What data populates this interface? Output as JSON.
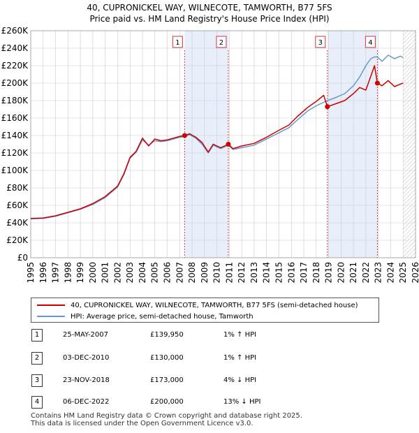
{
  "title_line1": "40, CUPRONICKEL WAY, WILNECOTE, TAMWORTH, B77 5FS",
  "title_line2": "Price paid vs. HM Land Registry's House Price Index (HPI)",
  "legend": {
    "property": "40, CUPRONICKEL WAY, WILNECOTE, TAMWORTH, B77 5FS (semi-detached house)",
    "hpi": "HPI: Average price, semi-detached house, Tamworth"
  },
  "colors": {
    "property_line": "#cc0000",
    "hpi_line": "#6699cc",
    "shade": "#e8eefa",
    "marker_line": "#dd3333",
    "grid": "#cccccc"
  },
  "sales": [
    {
      "num": "1",
      "date": "25-MAY-2007",
      "price": "£139,950",
      "hpi_rel": "1% ↑ HPI"
    },
    {
      "num": "2",
      "date": "03-DEC-2010",
      "price": "£130,000",
      "hpi_rel": "1% ↑ HPI"
    },
    {
      "num": "3",
      "date": "23-NOV-2018",
      "price": "£173,000",
      "hpi_rel": "4% ↓ HPI"
    },
    {
      "num": "4",
      "date": "06-DEC-2022",
      "price": "£200,000",
      "hpi_rel": "13% ↓ HPI"
    }
  ],
  "footer_line1": "Contains HM Land Registry data © Crown copyright and database right 2025.",
  "footer_line2": "This data is licensed under the Open Government Licence v3.0.",
  "chart_data": {
    "type": "line",
    "title": "Price paid vs. HM Land Registry's House Price Index (HPI)",
    "xlim": [
      1995,
      2026
    ],
    "ylim": [
      0,
      260000
    ],
    "x_ticks": [
      1995,
      1996,
      1997,
      1998,
      1999,
      2000,
      2001,
      2002,
      2003,
      2004,
      2005,
      2006,
      2007,
      2008,
      2009,
      2010,
      2011,
      2012,
      2013,
      2014,
      2015,
      2016,
      2017,
      2018,
      2019,
      2020,
      2021,
      2022,
      2023,
      2024,
      2025,
      2026
    ],
    "y_ticks": [
      0,
      20000,
      40000,
      60000,
      80000,
      100000,
      120000,
      140000,
      160000,
      180000,
      200000,
      220000,
      240000,
      260000
    ],
    "y_tick_labels": [
      "£0",
      "£20K",
      "£40K",
      "£60K",
      "£80K",
      "£100K",
      "£120K",
      "£140K",
      "£160K",
      "£180K",
      "£200K",
      "£220K",
      "£240K",
      "£260K"
    ],
    "shaded_ranges": [
      [
        2007.4,
        2010.92
      ],
      [
        2018.9,
        2022.93
      ]
    ],
    "future_hatch_from": 2025.0,
    "markers": [
      {
        "label": "1",
        "x": 2007.4,
        "y": 139950
      },
      {
        "label": "2",
        "x": 2010.92,
        "y": 130000
      },
      {
        "label": "3",
        "x": 2018.9,
        "y": 173000
      },
      {
        "label": "4",
        "x": 2022.93,
        "y": 200000
      }
    ],
    "series": [
      {
        "name": "40, CUPRONICKEL WAY, WILNECOTE, TAMWORTH, B77 5FS (semi-detached house)",
        "x": [
          1995.0,
          1996.0,
          1997.0,
          1998.0,
          1999.0,
          2000.0,
          2001.0,
          2002.0,
          2002.5,
          2003.0,
          2003.5,
          2004.0,
          2004.5,
          2005.0,
          2005.5,
          2006.0,
          2006.5,
          2007.0,
          2007.4,
          2007.8,
          2008.3,
          2008.8,
          2009.3,
          2009.7,
          2010.3,
          2010.92,
          2011.3,
          2012.0,
          2013.0,
          2014.0,
          2015.0,
          2015.8,
          2016.5,
          2017.3,
          2018.0,
          2018.6,
          2018.9,
          2019.5,
          2020.3,
          2021.0,
          2021.5,
          2022.0,
          2022.4,
          2022.7,
          2022.93,
          2023.3,
          2023.8,
          2024.3,
          2024.8,
          2025.0
        ],
        "y": [
          45000,
          45500,
          48000,
          52000,
          56000,
          62000,
          70000,
          82000,
          96000,
          115000,
          122000,
          137000,
          128000,
          136000,
          134000,
          135000,
          137000,
          139000,
          139950,
          142000,
          138000,
          132000,
          121000,
          130000,
          126000,
          130000,
          125000,
          128000,
          131000,
          138000,
          146000,
          152000,
          162000,
          172000,
          179000,
          186000,
          173000,
          176000,
          180000,
          188000,
          195000,
          192000,
          208000,
          220000,
          200000,
          197000,
          203000,
          196000,
          199000,
          200000
        ]
      },
      {
        "name": "HPI: Average price, semi-detached house, Tamworth",
        "x": [
          1995.0,
          1996.0,
          1997.0,
          1998.0,
          1999.0,
          2000.0,
          2001.0,
          2002.0,
          2002.5,
          2003.0,
          2003.5,
          2004.0,
          2004.5,
          2005.0,
          2005.5,
          2006.0,
          2006.5,
          2007.0,
          2007.4,
          2007.8,
          2008.3,
          2008.8,
          2009.3,
          2009.7,
          2010.3,
          2010.92,
          2011.3,
          2012.0,
          2013.0,
          2014.0,
          2015.0,
          2015.8,
          2016.5,
          2017.3,
          2018.0,
          2018.6,
          2018.9,
          2019.5,
          2020.3,
          2021.0,
          2021.5,
          2022.0,
          2022.4,
          2022.7,
          2022.93,
          2023.3,
          2023.8,
          2024.3,
          2024.8,
          2025.0
        ],
        "y": [
          44500,
          45000,
          47500,
          51500,
          55500,
          61000,
          69000,
          81000,
          95000,
          114000,
          121000,
          135000,
          129000,
          134000,
          133000,
          134000,
          136000,
          138000,
          138600,
          141000,
          137000,
          130000,
          120000,
          129000,
          125000,
          128700,
          124000,
          126000,
          129000,
          136000,
          143000,
          149000,
          158000,
          168000,
          174000,
          178000,
          180000,
          183000,
          188000,
          197000,
          207000,
          220000,
          228000,
          230000,
          230000,
          225000,
          232000,
          228000,
          231000,
          229000
        ]
      }
    ]
  }
}
